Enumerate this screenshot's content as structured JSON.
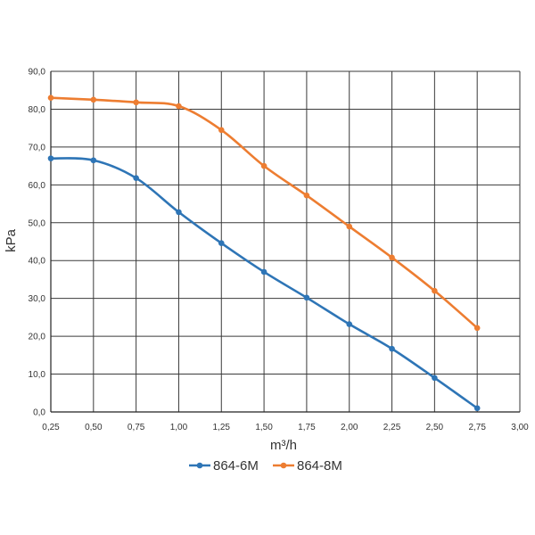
{
  "chart_data": {
    "type": "line",
    "title": "",
    "xlabel": "m³/h",
    "ylabel": "kPa",
    "xlim": [
      0.25,
      3.0
    ],
    "ylim": [
      0,
      90
    ],
    "x_ticks": [
      "0,25",
      "0,50",
      "0,75",
      "1,00",
      "1,25",
      "1,50",
      "1,75",
      "2,00",
      "2,25",
      "2,50",
      "2,75",
      "3,00"
    ],
    "y_ticks": [
      "0,0",
      "10,0",
      "20,0",
      "30,0",
      "40,0",
      "50,0",
      "60,0",
      "70,0",
      "80,0",
      "90,0"
    ],
    "grid": true,
    "legend_position": "bottom",
    "x": [
      0.25,
      0.5,
      0.75,
      1.0,
      1.25,
      1.5,
      1.75,
      2.0,
      2.25,
      2.5,
      2.75
    ],
    "series": [
      {
        "name": "864-6M",
        "color": "#2E75B6",
        "values": [
          67.0,
          66.5,
          61.8,
          52.8,
          44.6,
          37.0,
          30.2,
          23.2,
          16.7,
          9.0,
          1.0
        ]
      },
      {
        "name": "864-8M",
        "color": "#ED7D31",
        "values": [
          83.0,
          82.5,
          81.8,
          80.8,
          74.5,
          65.0,
          57.2,
          49.0,
          40.8,
          32.0,
          22.2
        ]
      }
    ]
  }
}
